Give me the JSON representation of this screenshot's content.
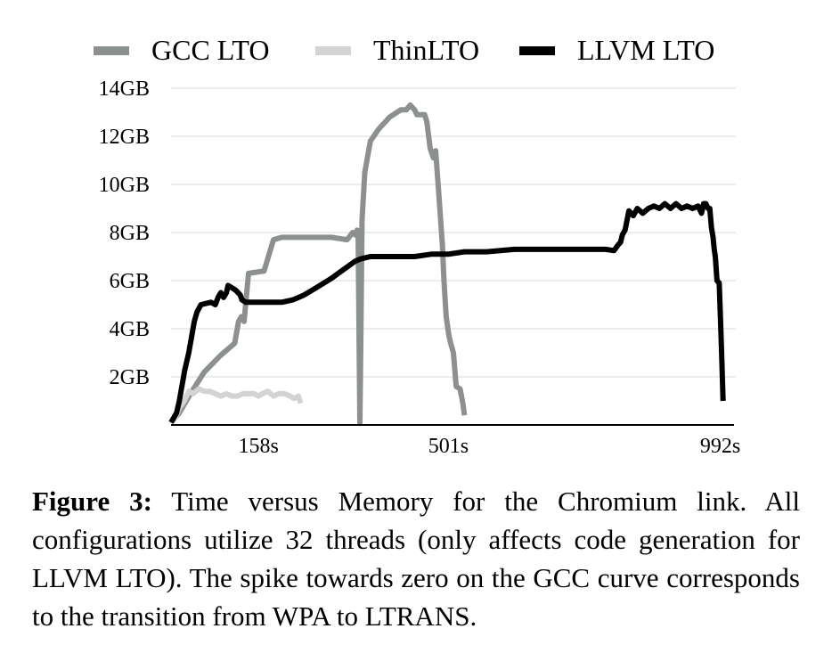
{
  "chart_data": {
    "type": "line",
    "title": "",
    "xlabel": "",
    "ylabel": "",
    "xlim": [
      0,
      1020
    ],
    "ylim": [
      0,
      14
    ],
    "grid": true,
    "legend_position": "top",
    "x_ticks": [
      {
        "value": 158,
        "label": "158s"
      },
      {
        "value": 501,
        "label": "501s"
      },
      {
        "value": 992,
        "label": "992s"
      }
    ],
    "y_ticks": [
      {
        "value": 2,
        "label": "2GB"
      },
      {
        "value": 4,
        "label": "4GB"
      },
      {
        "value": 6,
        "label": "6GB"
      },
      {
        "value": 8,
        "label": "8GB"
      },
      {
        "value": 10,
        "label": "10GB"
      },
      {
        "value": 12,
        "label": "12GB"
      },
      {
        "value": 14,
        "label": "14GB"
      }
    ],
    "series": [
      {
        "name": "GCC LTO",
        "color": "#8c908e",
        "points": [
          [
            0,
            0.1
          ],
          [
            15,
            0.5
          ],
          [
            35,
            1.3
          ],
          [
            60,
            2.2
          ],
          [
            90,
            2.9
          ],
          [
            115,
            3.4
          ],
          [
            122,
            4.3
          ],
          [
            127,
            4.5
          ],
          [
            132,
            4.3
          ],
          [
            140,
            6.3
          ],
          [
            168,
            6.4
          ],
          [
            185,
            7.7
          ],
          [
            200,
            7.8
          ],
          [
            215,
            7.8
          ],
          [
            245,
            7.8
          ],
          [
            290,
            7.8
          ],
          [
            318,
            7.7
          ],
          [
            328,
            8.0
          ],
          [
            333,
            7.9
          ],
          [
            336,
            8.1
          ],
          [
            338,
            7.7
          ],
          [
            341,
            0.1
          ],
          [
            343,
            4.0
          ],
          [
            345,
            8.5
          ],
          [
            350,
            10.5
          ],
          [
            360,
            11.8
          ],
          [
            375,
            12.3
          ],
          [
            395,
            12.8
          ],
          [
            415,
            13.1
          ],
          [
            425,
            13.1
          ],
          [
            432,
            13.3
          ],
          [
            440,
            13.1
          ],
          [
            444,
            12.9
          ],
          [
            458,
            12.9
          ],
          [
            462,
            12.6
          ],
          [
            468,
            11.5
          ],
          [
            474,
            11.1
          ],
          [
            478,
            11.4
          ],
          [
            484,
            9.5
          ],
          [
            490,
            7.5
          ],
          [
            493,
            6.0
          ],
          [
            497,
            4.5
          ],
          [
            502,
            3.7
          ],
          [
            505,
            3.4
          ],
          [
            510,
            3.0
          ],
          [
            515,
            1.6
          ],
          [
            522,
            1.5
          ],
          [
            527,
            0.9
          ],
          [
            530,
            0.4
          ]
        ]
      },
      {
        "name": "ThinLTO",
        "color": "#d3d3d3",
        "points": [
          [
            0,
            0.1
          ],
          [
            8,
            0.3
          ],
          [
            15,
            0.7
          ],
          [
            24,
            1.0
          ],
          [
            32,
            1.4
          ],
          [
            40,
            1.3
          ],
          [
            50,
            1.5
          ],
          [
            60,
            1.4
          ],
          [
            70,
            1.4
          ],
          [
            80,
            1.3
          ],
          [
            90,
            1.2
          ],
          [
            100,
            1.3
          ],
          [
            110,
            1.2
          ],
          [
            120,
            1.2
          ],
          [
            130,
            1.3
          ],
          [
            140,
            1.3
          ],
          [
            150,
            1.3
          ],
          [
            158,
            1.2
          ],
          [
            165,
            1.3
          ],
          [
            175,
            1.4
          ],
          [
            185,
            1.2
          ],
          [
            195,
            1.3
          ],
          [
            205,
            1.3
          ],
          [
            215,
            1.2
          ],
          [
            222,
            1.1
          ],
          [
            230,
            1.2
          ],
          [
            234,
            0.9
          ]
        ]
      },
      {
        "name": "LLVM LTO",
        "color": "#000000",
        "points": [
          [
            0,
            0.1
          ],
          [
            10,
            0.5
          ],
          [
            15,
            1.0
          ],
          [
            25,
            2.3
          ],
          [
            32,
            3.0
          ],
          [
            42,
            4.3
          ],
          [
            47,
            4.7
          ],
          [
            54,
            5.0
          ],
          [
            72,
            5.1
          ],
          [
            80,
            5.0
          ],
          [
            85,
            5.3
          ],
          [
            90,
            5.5
          ],
          [
            95,
            5.3
          ],
          [
            100,
            5.5
          ],
          [
            103,
            5.8
          ],
          [
            110,
            5.7
          ],
          [
            117,
            5.6
          ],
          [
            125,
            5.4
          ],
          [
            128,
            5.2
          ],
          [
            135,
            5.1
          ],
          [
            158,
            5.1
          ],
          [
            178,
            5.1
          ],
          [
            200,
            5.1
          ],
          [
            220,
            5.2
          ],
          [
            240,
            5.4
          ],
          [
            262,
            5.7
          ],
          [
            290,
            6.1
          ],
          [
            308,
            6.4
          ],
          [
            320,
            6.6
          ],
          [
            332,
            6.8
          ],
          [
            342,
            6.9
          ],
          [
            360,
            7.0
          ],
          [
            400,
            7.0
          ],
          [
            440,
            7.0
          ],
          [
            470,
            7.1
          ],
          [
            501,
            7.1
          ],
          [
            530,
            7.2
          ],
          [
            570,
            7.2
          ],
          [
            620,
            7.3
          ],
          [
            680,
            7.3
          ],
          [
            720,
            7.3
          ],
          [
            785,
            7.3
          ],
          [
            800,
            7.25
          ],
          [
            808,
            7.5
          ],
          [
            812,
            7.6
          ],
          [
            815,
            7.9
          ],
          [
            820,
            8.1
          ],
          [
            827,
            8.9
          ],
          [
            835,
            8.7
          ],
          [
            842,
            9.0
          ],
          [
            852,
            8.8
          ],
          [
            862,
            9.0
          ],
          [
            872,
            9.1
          ],
          [
            882,
            9.0
          ],
          [
            892,
            9.2
          ],
          [
            902,
            9.0
          ],
          [
            912,
            9.2
          ],
          [
            922,
            9.0
          ],
          [
            932,
            9.1
          ],
          [
            942,
            9.0
          ],
          [
            952,
            9.1
          ],
          [
            958,
            8.8
          ],
          [
            962,
            9.2
          ],
          [
            966,
            9.2
          ],
          [
            970,
            9.0
          ],
          [
            973,
            9.0
          ],
          [
            976,
            8.2
          ],
          [
            979,
            7.8
          ],
          [
            981,
            7.3
          ],
          [
            983,
            7.0
          ],
          [
            986,
            6.0
          ],
          [
            990,
            5.9
          ],
          [
            993,
            4.0
          ],
          [
            995,
            2.5
          ],
          [
            997,
            1.0
          ]
        ]
      }
    ]
  },
  "caption": {
    "label": "Figure 3:",
    "text": " Time versus Memory for the Chromium link. All configurations utilize 32 threads (only affects code generation for LLVM LTO). The spike towards zero on the GCC curve corresponds to the transition from WPA to LTRANS."
  }
}
